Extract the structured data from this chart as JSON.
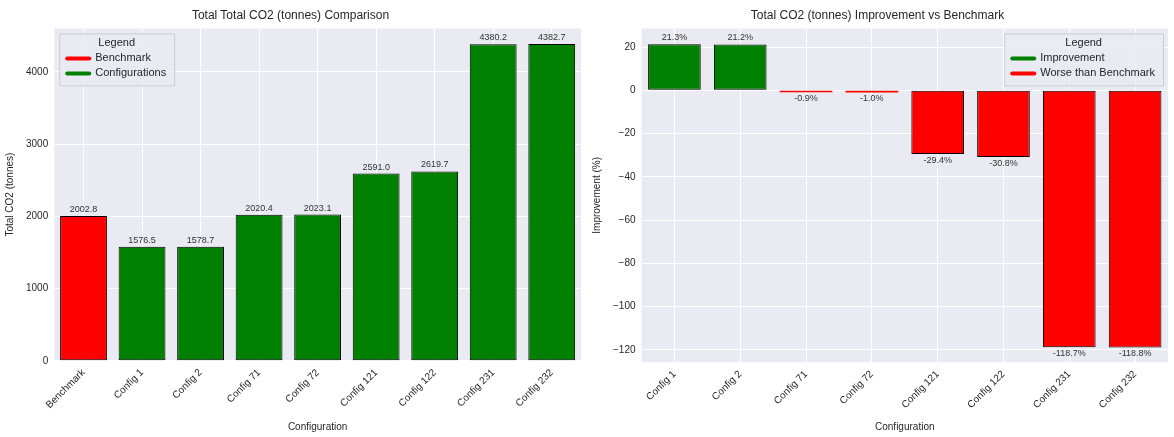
{
  "chart_data": [
    {
      "type": "bar",
      "title": "Total Total CO2 (tonnes) Comparison",
      "xlabel": "Configuration",
      "ylabel": "Total CO2 (tonnes)",
      "legend_title": "Legend",
      "categories": [
        "Benchmark",
        "Config 1",
        "Config 2",
        "Config 71",
        "Config 72",
        "Config 121",
        "Config 122",
        "Config 231",
        "Config 232"
      ],
      "series": [
        {
          "name": "Benchmark",
          "color": "#ff0000",
          "values": [
            2002.8,
            null,
            null,
            null,
            null,
            null,
            null,
            null,
            null
          ],
          "value_labels": [
            "2002.8",
            null,
            null,
            null,
            null,
            null,
            null,
            null,
            null
          ]
        },
        {
          "name": "Configurations",
          "color": "#008000",
          "values": [
            null,
            1576.5,
            1578.7,
            2020.4,
            2023.1,
            2591.0,
            2619.7,
            4380.2,
            4382.7
          ],
          "value_labels": [
            null,
            "1576.5",
            "1578.7",
            "2020.4",
            "2023.1",
            "2591.0",
            "2619.7",
            "4380.2",
            "4382.7"
          ]
        }
      ],
      "ylim": [
        0,
        4600
      ],
      "yticks": [
        0,
        1000,
        2000,
        3000,
        4000
      ],
      "grid": true,
      "legend": "top left"
    },
    {
      "type": "bar",
      "title": "Total CO2 (tonnes) Improvement vs Benchmark",
      "xlabel": "Configuration",
      "ylabel": "Improvement (%)",
      "legend_title": "Legend",
      "categories": [
        "Config 1",
        "Config 2",
        "Config 71",
        "Config 72",
        "Config 121",
        "Config 122",
        "Config 231",
        "Config 232"
      ],
      "series": [
        {
          "name": "Improvement",
          "color": "#008000",
          "values": [
            21.3,
            21.2,
            null,
            null,
            null,
            null,
            null,
            null
          ],
          "value_labels": [
            "21.3%",
            "21.2%",
            null,
            null,
            null,
            null,
            null,
            null
          ]
        },
        {
          "name": "Worse than Benchmark",
          "color": "#ff0000",
          "values": [
            null,
            null,
            -0.9,
            -1.0,
            -29.4,
            -30.8,
            -118.7,
            -118.8
          ],
          "value_labels": [
            null,
            null,
            "-0.9%",
            "-1.0%",
            "-29.4%",
            "-30.8%",
            "-118.7%",
            "-118.8%"
          ]
        }
      ],
      "ylim": [
        -125.7,
        28.6
      ],
      "yticks": [
        {
          "value": -120,
          "label": "−120"
        },
        {
          "value": -100,
          "label": "−100"
        },
        {
          "value": -80,
          "label": "−80"
        },
        {
          "value": -60,
          "label": "−60"
        },
        {
          "value": -40,
          "label": "−40"
        },
        {
          "value": -20,
          "label": "−20"
        },
        0,
        20
      ],
      "grid": true,
      "legend": "top right"
    }
  ]
}
